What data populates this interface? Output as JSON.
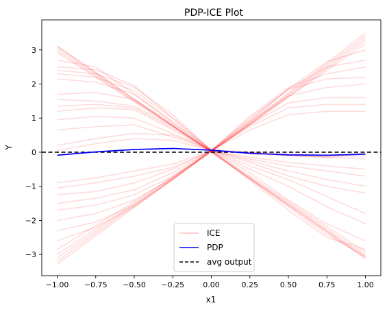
{
  "chart_data": {
    "type": "line",
    "title": "PDP-ICE Plot",
    "xlabel": "x1",
    "ylabel": "Y",
    "xlim": [
      -1.1,
      1.1
    ],
    "ylim": [
      -3.62,
      3.88
    ],
    "xticks": [
      -1.0,
      -0.75,
      -0.5,
      -0.25,
      0.0,
      0.25,
      0.5,
      0.75,
      1.0
    ],
    "xtick_labels": [
      "−1.00",
      "−0.75",
      "−0.50",
      "−0.25",
      "0.00",
      "0.25",
      "0.50",
      "0.75",
      "1.00"
    ],
    "yticks": [
      -3,
      -2,
      -1,
      0,
      1,
      2,
      3
    ],
    "ytick_labels": [
      "−3",
      "−2",
      "−1",
      "0",
      "1",
      "2",
      "3"
    ],
    "grid": false,
    "legend_position": "bottom-center",
    "legend": [
      {
        "label": "ICE",
        "style": "solid",
        "color": "#ffc0c0"
      },
      {
        "label": "PDP",
        "style": "solid",
        "color": "#0000ff"
      },
      {
        "label": "avg output",
        "style": "dashed",
        "color": "#000000"
      }
    ],
    "x": [
      -1.0,
      -0.75,
      -0.5,
      -0.25,
      0.0,
      0.25,
      0.5,
      0.75,
      1.0
    ],
    "series": [
      {
        "name": "PDP",
        "color": "#0000ff",
        "values": [
          -0.09,
          0.01,
          0.08,
          0.11,
          0.06,
          -0.03,
          -0.08,
          -0.09,
          -0.06
        ]
      },
      {
        "name": "avg output",
        "color": "#000000",
        "values": [
          0,
          0,
          0,
          0,
          0,
          0,
          0,
          0,
          0
        ]
      }
    ],
    "ice_lines": [
      [
        3.12,
        2.34,
        1.56,
        0.78,
        0.0,
        -0.78,
        -1.56,
        -2.34,
        -3.12
      ],
      [
        3.1,
        2.33,
        1.55,
        0.78,
        0.0,
        -0.78,
        -1.55,
        -2.33,
        -3.1
      ],
      [
        3.05,
        2.29,
        1.53,
        0.77,
        0.01,
        -0.76,
        -1.52,
        -2.3,
        -3.06
      ],
      [
        2.98,
        2.24,
        1.5,
        0.76,
        0.02,
        -0.74,
        -1.49,
        -2.25,
        -3.0
      ],
      [
        2.92,
        2.2,
        1.48,
        0.76,
        0.04,
        -0.7,
        -1.44,
        -2.18,
        -2.92
      ],
      [
        2.7,
        2.5,
        1.7,
        0.86,
        0.05,
        -0.78,
        -1.6,
        -2.42,
        -3.05
      ],
      [
        2.5,
        2.42,
        1.95,
        1.0,
        0.05,
        -0.82,
        -1.7,
        -2.5,
        -2.85
      ],
      [
        2.4,
        2.3,
        1.9,
        1.1,
        0.05,
        -0.6,
        -1.4,
        -2.1,
        -2.6
      ],
      [
        2.3,
        2.2,
        1.8,
        1.0,
        0.06,
        -0.5,
        -1.0,
        -1.6,
        -2.1
      ],
      [
        2.15,
        2.05,
        1.7,
        0.9,
        0.06,
        -0.4,
        -0.8,
        -1.3,
        -1.8
      ],
      [
        1.7,
        1.75,
        1.55,
        0.82,
        0.05,
        -0.3,
        -0.7,
        -1.0,
        -1.2
      ],
      [
        1.55,
        1.5,
        1.35,
        0.75,
        0.05,
        -0.25,
        -0.55,
        -0.8,
        -1.0
      ],
      [
        1.35,
        1.4,
        1.3,
        0.7,
        0.05,
        -0.2,
        -0.4,
        -0.55,
        -0.7
      ],
      [
        1.2,
        1.3,
        1.25,
        0.65,
        0.05,
        -0.15,
        -0.3,
        -0.4,
        -0.5
      ],
      [
        0.95,
        1.05,
        1.0,
        0.55,
        0.05,
        -0.05,
        -0.1,
        -0.15,
        -0.2
      ],
      [
        0.65,
        0.75,
        0.8,
        0.45,
        0.05,
        0.0,
        -0.05,
        -0.1,
        -0.12
      ],
      [
        0.2,
        0.4,
        0.55,
        0.5,
        0.08,
        0.0,
        -0.1,
        -0.15,
        -0.05
      ],
      [
        0.05,
        0.25,
        0.4,
        0.35,
        0.05,
        -0.02,
        -0.08,
        -0.12,
        -0.02
      ],
      [
        -0.9,
        -0.75,
        -0.55,
        -0.35,
        0.05,
        0.65,
        1.1,
        1.2,
        1.2
      ],
      [
        -1.05,
        -0.9,
        -0.7,
        -0.45,
        0.05,
        0.75,
        1.3,
        1.4,
        1.4
      ],
      [
        -1.25,
        -1.15,
        -0.9,
        -0.5,
        0.05,
        0.8,
        1.45,
        1.6,
        1.6
      ],
      [
        -1.5,
        -1.35,
        -1.1,
        -0.6,
        0.05,
        0.9,
        1.65,
        1.9,
        2.0
      ],
      [
        -1.7,
        -1.55,
        -1.25,
        -0.7,
        0.05,
        1.0,
        1.85,
        2.15,
        2.2
      ],
      [
        -2.0,
        -1.8,
        -1.4,
        -0.75,
        0.05,
        1.05,
        1.9,
        2.3,
        2.5
      ],
      [
        -2.3,
        -2.05,
        -1.55,
        -0.8,
        0.05,
        0.95,
        1.85,
        2.5,
        2.7
      ],
      [
        -2.6,
        -2.2,
        -1.6,
        -0.8,
        0.05,
        0.9,
        1.85,
        2.65,
        3.0
      ],
      [
        -2.85,
        -2.15,
        -1.45,
        -0.72,
        0.05,
        0.82,
        1.62,
        2.4,
        3.18
      ],
      [
        -3.0,
        -2.25,
        -1.5,
        -0.74,
        0.03,
        0.8,
        1.62,
        2.45,
        3.28
      ],
      [
        -3.1,
        -2.32,
        -1.54,
        -0.76,
        0.02,
        0.82,
        1.66,
        2.5,
        3.35
      ],
      [
        -3.2,
        -2.38,
        -1.58,
        -0.78,
        0.02,
        0.84,
        1.7,
        2.56,
        3.42
      ],
      [
        -3.28,
        -2.45,
        -1.62,
        -0.8,
        0.02,
        0.86,
        1.74,
        2.62,
        3.5
      ]
    ]
  }
}
